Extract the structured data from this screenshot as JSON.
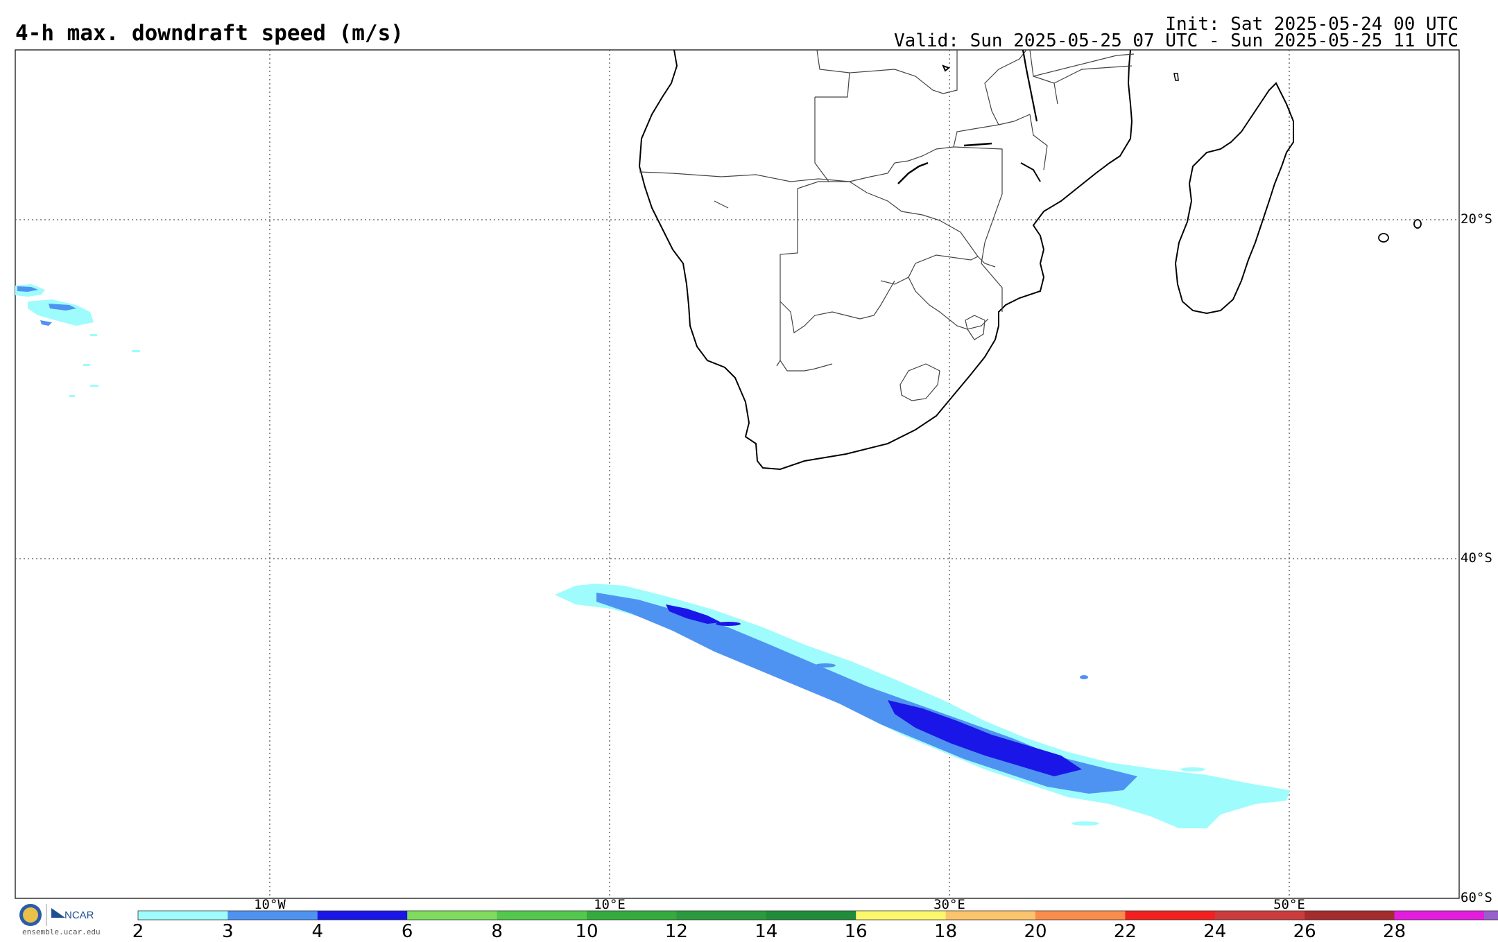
{
  "header": {
    "title": "4-h max. downdraft speed (m/s)",
    "init": "Init: Sat 2025-05-24 00 UTC",
    "valid": "Valid: Sun 2025-05-25 07 UTC - Sun 2025-05-25 11 UTC"
  },
  "map": {
    "longitude_labels": [
      "10°W",
      "10°E",
      "30°E",
      "50°E"
    ],
    "latitude_labels": [
      "20°S",
      "40°S",
      "60°S"
    ]
  },
  "colorbar": {
    "ticks": [
      "2",
      "3",
      "4",
      "6",
      "8",
      "10",
      "12",
      "14",
      "16",
      "18",
      "20",
      "22",
      "24",
      "26",
      "28"
    ],
    "colors": [
      "#9ffcfc",
      "#4f93f2",
      "#1a16e8",
      "#7fdc5c",
      "#52c84c",
      "#34ab3c",
      "#2a9a3e",
      "#1f8c3a",
      "#fcf86c",
      "#fcc46c",
      "#fc8c4c",
      "#f42020",
      "#cc3c3c",
      "#a42c2c",
      "#e41ce0",
      "#9860cc"
    ]
  },
  "footer": {
    "logo_text": "NCAR",
    "url": "ensemble.ucar.edu"
  }
}
